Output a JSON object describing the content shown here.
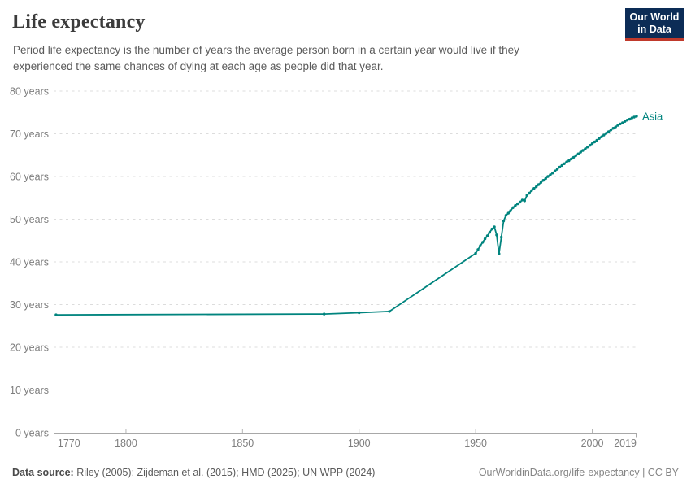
{
  "header": {
    "title": "Life expectancy",
    "subtitle": "Period life expectancy is the number of years the average person born in a certain year would live if they experienced the same chances of dying at each age as people did that year.",
    "logo_line1": "Our World",
    "logo_line2": "in Data"
  },
  "chart_data": {
    "type": "line",
    "title": "Life expectancy",
    "unit": "years",
    "xlabel": "",
    "ylabel": "",
    "xlim": [
      1770,
      2019
    ],
    "ylim": [
      0,
      80
    ],
    "grid": true,
    "legend_position": "end-of-line",
    "x_ticks": [
      1770,
      1800,
      1850,
      1900,
      1950,
      2000,
      2019
    ],
    "y_ticks": [
      0,
      10,
      20,
      30,
      40,
      50,
      60,
      70,
      80
    ],
    "y_tick_suffix": " years",
    "series": [
      {
        "name": "Asia",
        "color": "#00847e",
        "points": [
          [
            1770,
            27.6
          ],
          [
            1885,
            27.8
          ],
          [
            1900,
            28.1
          ],
          [
            1913,
            28.4
          ],
          [
            1950,
            42.0
          ],
          [
            1951,
            42.9
          ],
          [
            1952,
            43.8
          ],
          [
            1953,
            44.6
          ],
          [
            1954,
            45.4
          ],
          [
            1955,
            46.1
          ],
          [
            1956,
            46.9
          ],
          [
            1957,
            47.7
          ],
          [
            1958,
            48.2
          ],
          [
            1959,
            46.3
          ],
          [
            1960,
            41.9
          ],
          [
            1961,
            45.8
          ],
          [
            1962,
            49.6
          ],
          [
            1963,
            50.9
          ],
          [
            1964,
            51.4
          ],
          [
            1965,
            52.0
          ],
          [
            1966,
            52.7
          ],
          [
            1967,
            53.2
          ],
          [
            1968,
            53.6
          ],
          [
            1969,
            54.0
          ],
          [
            1970,
            54.5
          ],
          [
            1971,
            54.3
          ],
          [
            1972,
            55.6
          ],
          [
            1973,
            56.1
          ],
          [
            1974,
            56.7
          ],
          [
            1975,
            57.2
          ],
          [
            1976,
            57.6
          ],
          [
            1977,
            58.1
          ],
          [
            1978,
            58.6
          ],
          [
            1979,
            59.1
          ],
          [
            1980,
            59.5
          ],
          [
            1981,
            60.0
          ],
          [
            1982,
            60.4
          ],
          [
            1983,
            60.8
          ],
          [
            1984,
            61.3
          ],
          [
            1985,
            61.7
          ],
          [
            1986,
            62.2
          ],
          [
            1987,
            62.6
          ],
          [
            1988,
            63.0
          ],
          [
            1989,
            63.4
          ],
          [
            1990,
            63.7
          ],
          [
            1991,
            64.1
          ],
          [
            1992,
            64.5
          ],
          [
            1993,
            64.9
          ],
          [
            1994,
            65.3
          ],
          [
            1995,
            65.7
          ],
          [
            1996,
            66.1
          ],
          [
            1997,
            66.5
          ],
          [
            1998,
            66.9
          ],
          [
            1999,
            67.3
          ],
          [
            2000,
            67.7
          ],
          [
            2001,
            68.1
          ],
          [
            2002,
            68.5
          ],
          [
            2003,
            68.9
          ],
          [
            2004,
            69.3
          ],
          [
            2005,
            69.7
          ],
          [
            2006,
            70.1
          ],
          [
            2007,
            70.5
          ],
          [
            2008,
            70.9
          ],
          [
            2009,
            71.3
          ],
          [
            2010,
            71.6
          ],
          [
            2011,
            72.0
          ],
          [
            2012,
            72.3
          ],
          [
            2013,
            72.6
          ],
          [
            2014,
            72.9
          ],
          [
            2015,
            73.2
          ],
          [
            2016,
            73.4
          ],
          [
            2017,
            73.7
          ],
          [
            2018,
            73.9
          ],
          [
            2019,
            74.1
          ]
        ]
      }
    ]
  },
  "footer": {
    "datasource_label": "Data source:",
    "datasource_text": " Riley (2005); Zijdeman et al. (2015); HMD (2025); UN WPP (2024)",
    "attribution": "OurWorldinData.org/life-expectancy | CC BY"
  },
  "colors": {
    "line": "#00847e",
    "grid": "#dcdcdc",
    "axis": "#a8a8a8",
    "tick_text": "#7e7e7e",
    "logo_bg": "#0c2c56",
    "logo_accent": "#c0392b"
  }
}
